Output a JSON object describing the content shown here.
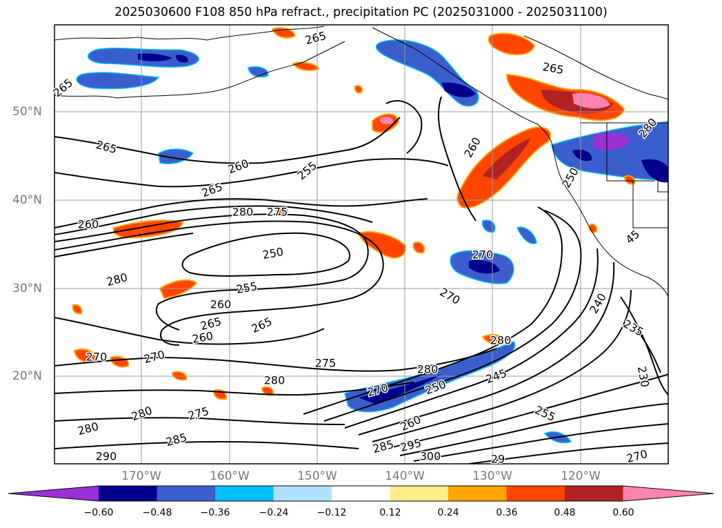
{
  "title": "2025030600 F108 850 hPa refract., precipitation PC (2025031000 - 2025031100)",
  "lat_labels": [
    "50°N",
    "40°N",
    "30°N",
    "20°N"
  ],
  "lon_labels": [
    "170°W",
    "160°W",
    "150°W",
    "140°W",
    "130°W",
    "120°W"
  ],
  "colorbar": {
    "ticks": [
      "−0.60",
      "−0.48",
      "−0.36",
      "−0.24",
      "−0.12",
      "0.12",
      "0.24",
      "0.36",
      "0.48",
      "0.60"
    ],
    "colors": [
      "#9b30d6",
      "#00008b",
      "#3a5fcd",
      "#00bfff",
      "#b0e2ff",
      "#ffffff",
      "#ffec8b",
      "#ffa500",
      "#ff4500",
      "#b22222",
      "#ff83b0"
    ]
  },
  "contour_labels": [
    {
      "text": "265"
    },
    {
      "text": "265"
    },
    {
      "text": "265"
    },
    {
      "text": "265"
    },
    {
      "text": "260"
    },
    {
      "text": "255"
    },
    {
      "text": "265"
    },
    {
      "text": "280"
    },
    {
      "text": "275"
    },
    {
      "text": "260"
    },
    {
      "text": "250"
    },
    {
      "text": "280"
    },
    {
      "text": "255"
    },
    {
      "text": "260"
    },
    {
      "text": "265"
    },
    {
      "text": "260"
    },
    {
      "text": "265"
    },
    {
      "text": "270"
    },
    {
      "text": "270"
    },
    {
      "text": "275"
    },
    {
      "text": "280"
    },
    {
      "text": "280"
    },
    {
      "text": "280"
    },
    {
      "text": "270"
    },
    {
      "text": "250"
    },
    {
      "text": "245"
    },
    {
      "text": "260"
    },
    {
      "text": "270"
    },
    {
      "text": "240"
    },
    {
      "text": "235"
    },
    {
      "text": "230"
    },
    {
      "text": "255"
    },
    {
      "text": "280"
    },
    {
      "text": "275"
    },
    {
      "text": "280"
    },
    {
      "text": "285"
    },
    {
      "text": "290"
    },
    {
      "text": "285"
    },
    {
      "text": "295"
    },
    {
      "text": "300"
    },
    {
      "text": "270"
    },
    {
      "text": "29"
    },
    {
      "text": "260"
    },
    {
      "text": "45"
    },
    {
      "text": "270"
    },
    {
      "text": "280"
    },
    {
      "text": "250"
    }
  ]
}
